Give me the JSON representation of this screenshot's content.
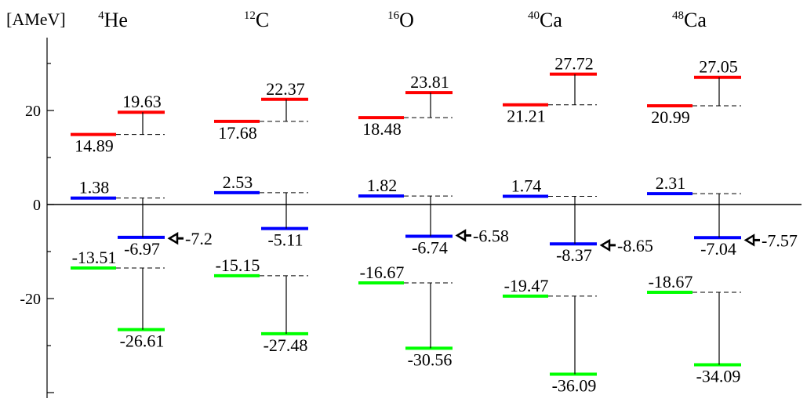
{
  "chart_data": {
    "type": "table",
    "unit_label": "[AMeV]",
    "yticks": [
      {
        "value": 20,
        "label": "20"
      },
      {
        "value": 0,
        "label": "0"
      },
      {
        "value": -20,
        "label": "-20"
      }
    ],
    "ylim": [
      -42,
      36
    ],
    "grid": false,
    "colors": {
      "high": "#ff0000",
      "mid": "#0000ff",
      "low": "#00ff00"
    },
    "nuclei": [
      {
        "mass": "4",
        "symbol": "He",
        "levels": {
          "red": [
            14.89,
            19.63
          ],
          "blue": [
            1.38,
            -6.97
          ],
          "green": [
            -13.51,
            -26.61
          ]
        },
        "arrow_value": -7.2,
        "labels": {
          "red": [
            "14.89",
            "19.63"
          ],
          "blue": [
            "1.38",
            "-6.97"
          ],
          "green": [
            "-13.51",
            "-26.61"
          ],
          "arrow": "-7.2"
        }
      },
      {
        "mass": "12",
        "symbol": "C",
        "levels": {
          "red": [
            17.68,
            22.37
          ],
          "blue": [
            2.53,
            -5.11
          ],
          "green": [
            -15.15,
            -27.48
          ]
        },
        "arrow_value": null,
        "labels": {
          "red": [
            "17.68",
            "22.37"
          ],
          "blue": [
            "2.53",
            "-5.11"
          ],
          "green": [
            "-15.15",
            "-27.48"
          ],
          "arrow": ""
        }
      },
      {
        "mass": "16",
        "symbol": "O",
        "levels": {
          "red": [
            18.48,
            23.81
          ],
          "blue": [
            1.82,
            -6.74
          ],
          "green": [
            -16.67,
            -30.56
          ]
        },
        "arrow_value": -6.58,
        "labels": {
          "red": [
            "18.48",
            "23.81"
          ],
          "blue": [
            "1.82",
            "-6.74"
          ],
          "green": [
            "-16.67",
            "-30.56"
          ],
          "arrow": "-6.58"
        }
      },
      {
        "mass": "40",
        "symbol": "Ca",
        "levels": {
          "red": [
            21.21,
            27.72
          ],
          "blue": [
            1.74,
            -8.37
          ],
          "green": [
            -19.47,
            -36.09
          ]
        },
        "arrow_value": -8.65,
        "labels": {
          "red": [
            "21.21",
            "27.72"
          ],
          "blue": [
            "1.74",
            "-8.37"
          ],
          "green": [
            "-19.47",
            "-36.09"
          ],
          "arrow": "-8.65"
        }
      },
      {
        "mass": "48",
        "symbol": "Ca",
        "levels": {
          "red": [
            20.99,
            27.05
          ],
          "blue": [
            2.31,
            -7.04
          ],
          "green": [
            -18.67,
            -34.09
          ]
        },
        "arrow_value": -7.57,
        "labels": {
          "red": [
            "20.99",
            "27.05"
          ],
          "blue": [
            "2.31",
            "-7.04"
          ],
          "green": [
            "-18.67",
            "-34.09"
          ],
          "arrow": "-7.57"
        }
      }
    ]
  }
}
